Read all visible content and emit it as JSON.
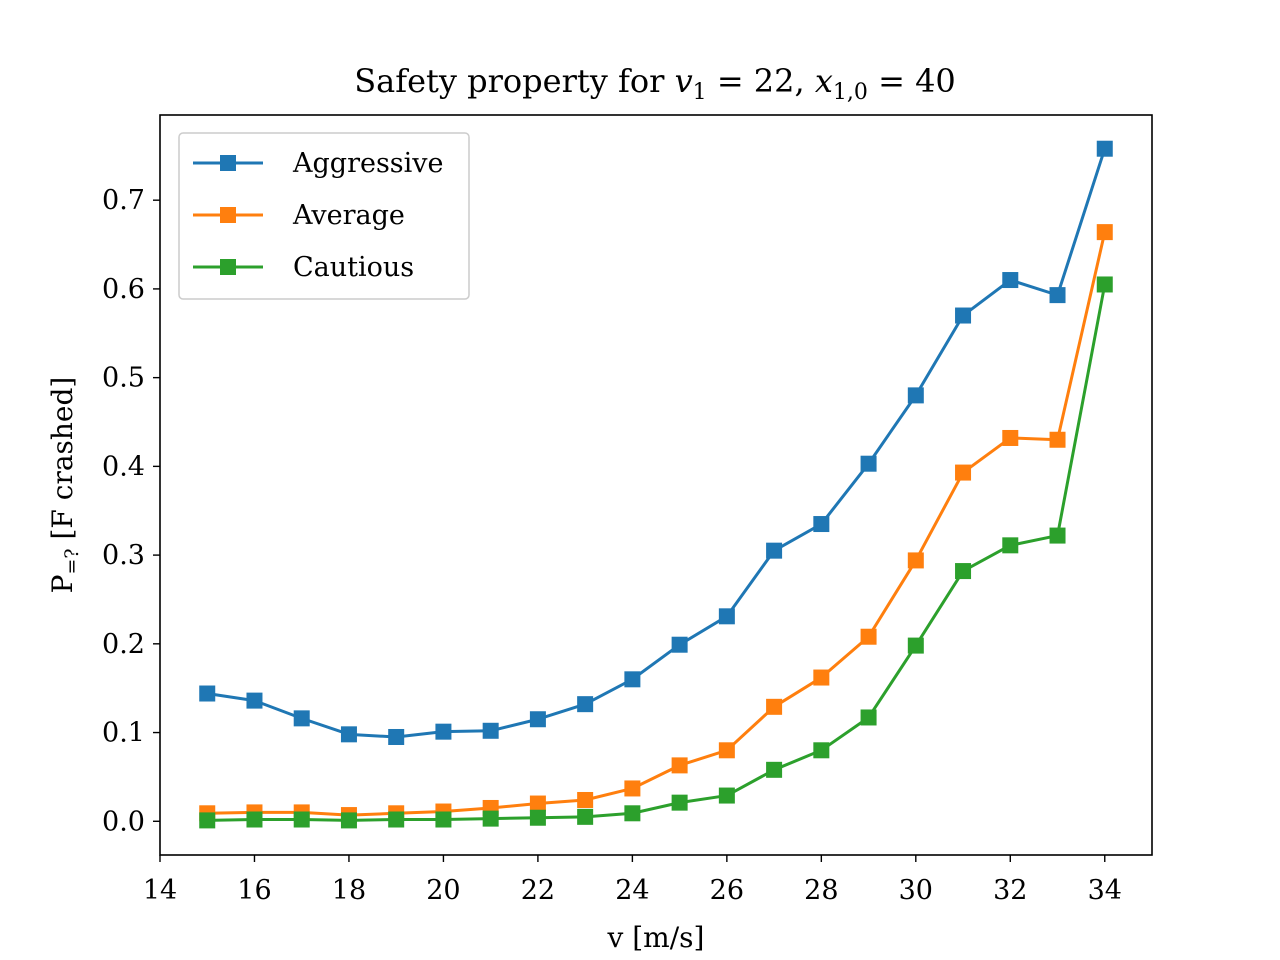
{
  "chart_data": {
    "type": "line",
    "title": "Safety property for v₁ = 22, x₁,₀ = 40",
    "title_parts": {
      "prefix": "Safety property for ",
      "v": "v",
      "v_sub": "1",
      "eq1": " = 22, ",
      "x": "x",
      "x_sub": "1,0",
      "eq2": " = 40"
    },
    "xlabel": "v [m/s]",
    "ylabel": "P=? [F crashed]",
    "ylabel_parts": {
      "p": "P",
      "p_sub": "=?",
      "rest": " [F crashed]"
    },
    "xlim": [
      14,
      35
    ],
    "ylim": [
      -0.038,
      0.796
    ],
    "xticks": [
      14,
      16,
      18,
      20,
      22,
      24,
      26,
      28,
      30,
      32,
      34
    ],
    "yticks": [
      0.0,
      0.1,
      0.2,
      0.3,
      0.4,
      0.5,
      0.6,
      0.7
    ],
    "ytick_labels": [
      "0.0",
      "0.1",
      "0.2",
      "0.3",
      "0.4",
      "0.5",
      "0.6",
      "0.7"
    ],
    "grid": false,
    "legend_position": "top-left",
    "marker": "square",
    "x": [
      15,
      16,
      17,
      18,
      19,
      20,
      21,
      22,
      23,
      24,
      25,
      26,
      27,
      28,
      29,
      30,
      31,
      32,
      33,
      34
    ],
    "series": [
      {
        "name": "Aggressive",
        "color": "#1f77b4",
        "values": [
          0.144,
          0.136,
          0.116,
          0.098,
          0.095,
          0.101,
          0.102,
          0.115,
          0.132,
          0.16,
          0.199,
          0.231,
          0.305,
          0.335,
          0.403,
          0.48,
          0.57,
          0.61,
          0.593,
          0.758
        ]
      },
      {
        "name": "Average",
        "color": "#ff7f0e",
        "values": [
          0.009,
          0.01,
          0.01,
          0.007,
          0.009,
          0.011,
          0.015,
          0.02,
          0.024,
          0.037,
          0.063,
          0.08,
          0.129,
          0.162,
          0.208,
          0.294,
          0.393,
          0.432,
          0.43,
          0.664
        ]
      },
      {
        "name": "Cautious",
        "color": "#2ca02c",
        "values": [
          0.001,
          0.002,
          0.002,
          0.001,
          0.002,
          0.002,
          0.003,
          0.004,
          0.005,
          0.009,
          0.021,
          0.029,
          0.058,
          0.08,
          0.117,
          0.198,
          0.282,
          0.311,
          0.322,
          0.605
        ]
      }
    ]
  }
}
